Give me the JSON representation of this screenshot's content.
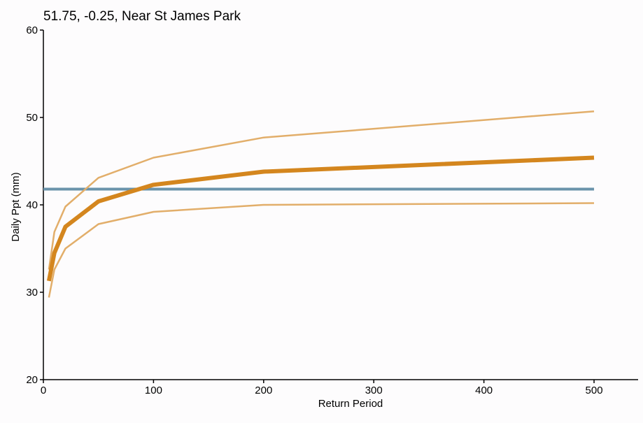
{
  "chart_data": {
    "type": "line",
    "title": "51.75, -0.25, Near St James Park",
    "xlabel": "Return Period",
    "ylabel": "Daily Ppt (mm)",
    "xlim": [
      0,
      540
    ],
    "ylim": [
      20,
      60
    ],
    "xticks": [
      "0",
      "100",
      "200",
      "300",
      "400",
      "500"
    ],
    "yticks": [
      "20",
      "30",
      "40",
      "50",
      "60"
    ],
    "grid": false,
    "x": [
      5,
      10,
      20,
      50,
      100,
      200,
      500
    ],
    "series": [
      {
        "values": [
          31.3,
          34.5,
          37.5,
          40.4,
          42.3,
          43.8,
          45.4
        ],
        "color": "#d4861e",
        "width": 6
      },
      {
        "values": [
          32.6,
          36.9,
          39.8,
          43.1,
          45.4,
          47.7,
          50.7
        ],
        "color": "#e2ae6a",
        "width": 2.5
      },
      {
        "values": [
          29.4,
          32.6,
          35.0,
          37.8,
          39.2,
          40.0,
          40.2
        ],
        "color": "#e2ae6a",
        "width": 2.5
      }
    ],
    "reference_line": {
      "y": 41.8,
      "color": "#6a93ab",
      "width": 4
    }
  }
}
